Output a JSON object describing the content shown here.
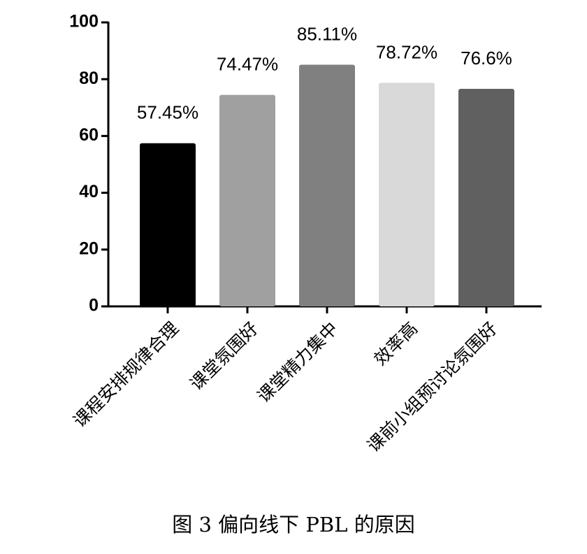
{
  "chart_data": {
    "type": "bar",
    "caption": "图 3 偏向线下 PBL 的原因",
    "categories": [
      "课程安排规律合理",
      "课堂氛围好",
      "课堂精力集中",
      "效率高",
      "课前小组预讨论氛围好"
    ],
    "values": [
      57.45,
      74.47,
      85.11,
      78.72,
      76.6
    ],
    "value_labels": [
      "57.45%",
      "74.47%",
      "85.11%",
      "78.72%",
      "76.6%"
    ],
    "colors": [
      "#000000",
      "#a0a0a0",
      "#808080",
      "#d9d9d9",
      "#606060"
    ],
    "ylim": [
      0,
      100
    ],
    "yticks": [
      0,
      20,
      40,
      60,
      80,
      100
    ],
    "grid": false
  }
}
